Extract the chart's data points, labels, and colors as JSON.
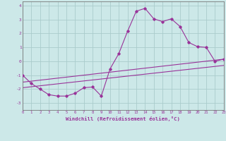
{
  "xlabel": "Windchill (Refroidissement éolien,°C)",
  "bg_color": "#cce8e8",
  "grid_color": "#aacccc",
  "line_color": "#993399",
  "xlim": [
    0,
    23
  ],
  "ylim": [
    -3.5,
    4.3
  ],
  "xticks": [
    0,
    1,
    2,
    3,
    4,
    5,
    6,
    7,
    8,
    9,
    10,
    11,
    12,
    13,
    14,
    15,
    16,
    17,
    18,
    19,
    20,
    21,
    22,
    23
  ],
  "yticks": [
    -3,
    -2,
    -1,
    0,
    1,
    2,
    3,
    4
  ],
  "main_x": [
    0,
    1,
    2,
    3,
    4,
    5,
    6,
    7,
    8,
    9,
    10,
    11,
    12,
    13,
    14,
    15,
    16,
    17,
    18,
    19,
    20,
    21,
    22,
    23
  ],
  "main_y": [
    -1.0,
    -1.6,
    -2.0,
    -2.4,
    -2.5,
    -2.5,
    -2.3,
    -1.9,
    -1.85,
    -2.5,
    -0.55,
    0.55,
    2.15,
    3.6,
    3.8,
    3.05,
    2.85,
    3.05,
    2.5,
    1.35,
    1.05,
    1.0,
    0.0,
    0.15
  ],
  "line2_x": [
    0,
    23
  ],
  "line2_y": [
    -1.5,
    0.15
  ],
  "line3_x": [
    0,
    23
  ],
  "line3_y": [
    -1.9,
    -0.3
  ]
}
